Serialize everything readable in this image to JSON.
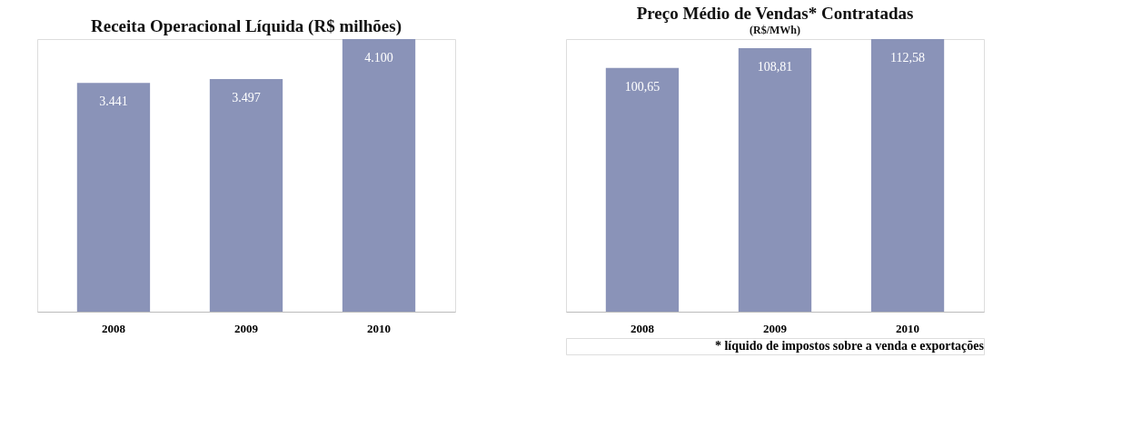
{
  "chart_data": [
    {
      "type": "bar",
      "title": "Receita Operacional Líquida (R$ milhões)",
      "categories": [
        "2008",
        "2009",
        "2010"
      ],
      "values": [
        3441,
        3497,
        4100
      ],
      "value_labels": [
        "3.441",
        "3.497",
        "4.100"
      ],
      "color": "#8a93b8"
    },
    {
      "type": "bar",
      "title": "Preço Médio de Vendas* Contratadas",
      "subtitle": "(R$/MWh)",
      "categories": [
        "2008",
        "2009",
        "2010"
      ],
      "values": [
        100.65,
        108.81,
        112.58
      ],
      "value_labels": [
        "100,65",
        "108,81",
        "112,58"
      ],
      "color": "#8a93b8",
      "annotations": [
        "* líquido de impostos sobre a venda e exportações"
      ]
    }
  ]
}
